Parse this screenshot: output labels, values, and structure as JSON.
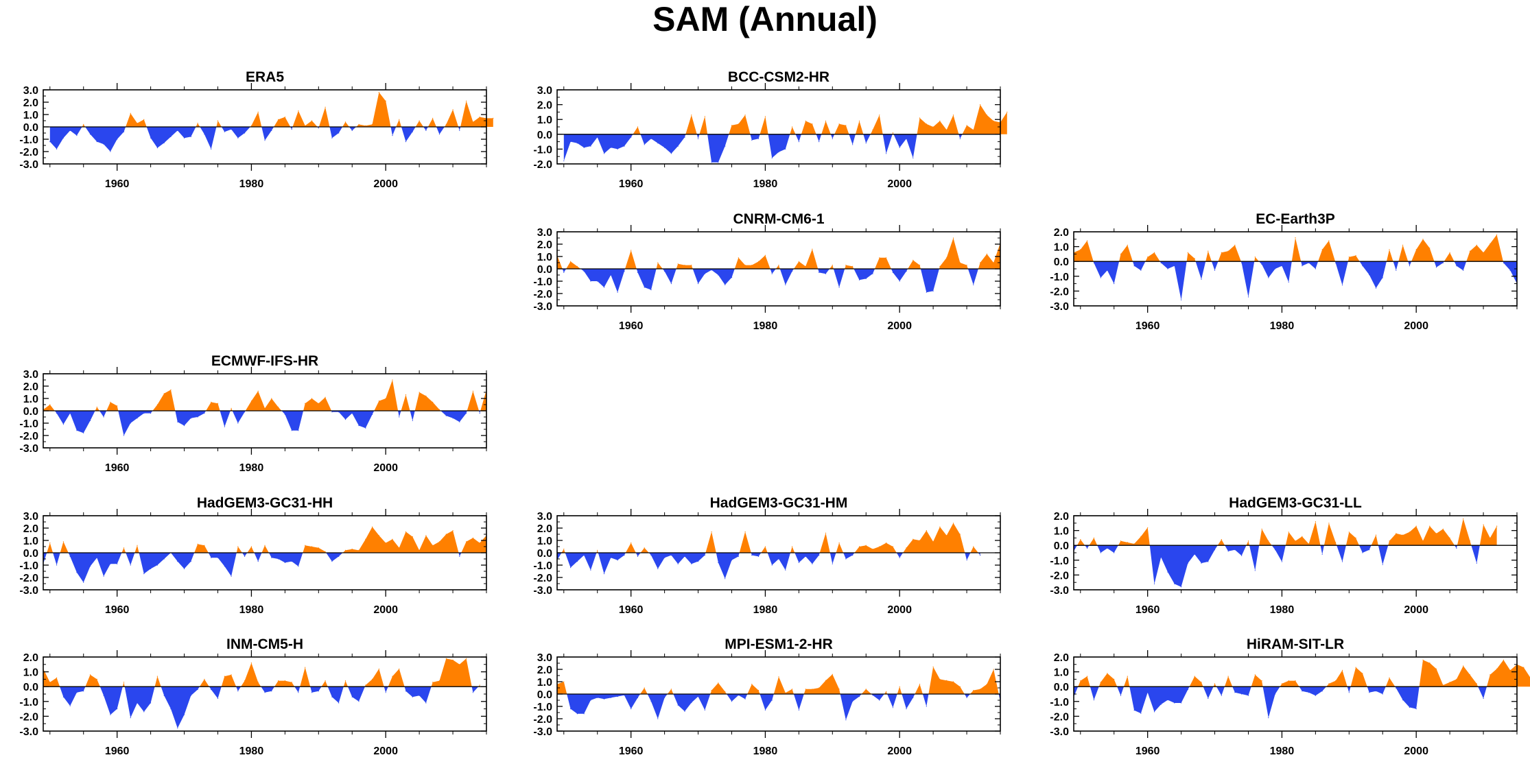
{
  "figure_title": "SAM (Annual)",
  "colors": {
    "positive": "#ff8000",
    "negative": "#2a46ee",
    "axis": "#000000"
  },
  "chart_data": [
    {
      "type": "area",
      "title": "ERA5",
      "row": 0,
      "col": 0,
      "ylim": [
        -3,
        3
      ],
      "yticks": [
        "3.0",
        "2.0",
        "1.0",
        "0.0",
        "-1.0",
        "-2.0",
        "-3.0"
      ],
      "xlim": [
        1949,
        2015
      ],
      "xticks": [
        "1960",
        "1980",
        "2000"
      ],
      "x_start": 1950,
      "values": [
        -1.2,
        -1.8,
        -0.9,
        -0.3,
        -0.7,
        0.2,
        -0.6,
        -1.2,
        -1.4,
        -2.0,
        -1.0,
        -0.4,
        1.1,
        0.3,
        0.6,
        -0.9,
        -1.7,
        -1.3,
        -0.8,
        -0.3,
        -0.9,
        -0.8,
        0.3,
        -0.6,
        -1.8,
        0.5,
        -0.4,
        -0.2,
        -0.9,
        -0.5,
        0.1,
        1.2,
        -1.1,
        -0.3,
        0.6,
        0.8,
        -0.2,
        1.3,
        0.1,
        0.5,
        -0.1,
        1.6,
        -0.9,
        -0.5,
        0.4,
        -0.3,
        0.2,
        0.1,
        0.2,
        2.8,
        2.1,
        -0.7,
        0.6,
        -1.2,
        -0.4,
        0.5,
        -0.3,
        0.7,
        -0.6,
        0.2,
        1.4,
        -0.3,
        2.1,
        0.4,
        0.8,
        0.7,
        0.7
      ]
    },
    {
      "type": "area",
      "title": "BCC-CSM2-HR",
      "row": 0,
      "col": 1,
      "ylim": [
        -2,
        3
      ],
      "yticks": [
        "3.0",
        "2.0",
        "1.0",
        "0.0",
        "-1.0",
        "-2.0"
      ],
      "xlim": [
        1949,
        2015
      ],
      "xticks": [
        "1960",
        "1980",
        "2000"
      ],
      "x_start": 1950,
      "values": [
        -1.8,
        -0.5,
        -0.6,
        -0.9,
        -0.8,
        -0.2,
        -1.3,
        -0.9,
        -1.0,
        -0.8,
        -0.2,
        0.5,
        -0.7,
        -0.3,
        -0.6,
        -0.9,
        -1.3,
        -0.8,
        -0.2,
        1.3,
        -0.3,
        1.2,
        -1.9,
        -1.9,
        -0.8,
        0.6,
        0.7,
        1.3,
        -0.4,
        -0.3,
        1.2,
        -1.6,
        -1.2,
        -1.0,
        0.5,
        -0.5,
        0.9,
        0.7,
        -0.5,
        0.9,
        -0.3,
        0.7,
        0.6,
        -0.7,
        0.9,
        -0.6,
        0.3,
        1.3,
        -1.3,
        0.1,
        -0.9,
        -0.3,
        -1.6,
        1.1,
        0.7,
        0.5,
        0.9,
        0.3,
        1.3,
        -0.3,
        0.6,
        0.3,
        2.0,
        1.3,
        0.9,
        0.8,
        1.5
      ]
    },
    {
      "type": "area",
      "title": "CNRM-CM6-1",
      "row": 1,
      "col": 1,
      "ylim": [
        -3,
        3
      ],
      "yticks": [
        "3.0",
        "2.0",
        "1.0",
        "0.0",
        "-1.0",
        "-2.0",
        "-3.0"
      ],
      "xlim": [
        1949,
        2015
      ],
      "xticks": [
        "1960",
        "1980",
        "2000"
      ],
      "x_start": 1949,
      "values": [
        1.1,
        -0.3,
        0.6,
        0.2,
        -0.2,
        -1.0,
        -1.0,
        -1.5,
        -0.5,
        -1.9,
        -0.2,
        1.5,
        -0.3,
        -1.5,
        -1.7,
        0.5,
        -0.2,
        -1.2,
        0.4,
        0.3,
        0.3,
        -1.2,
        -0.4,
        -0.1,
        -0.5,
        -1.3,
        -0.7,
        0.9,
        0.3,
        0.3,
        0.6,
        1.1,
        -0.4,
        0.3,
        -1.3,
        -0.2,
        0.6,
        0.2,
        1.6,
        -0.3,
        -0.4,
        0.3,
        -1.5,
        0.3,
        0.2,
        -0.9,
        -0.8,
        -0.4,
        0.9,
        0.9,
        -0.3,
        -1.0,
        -0.2,
        0.7,
        0.3,
        -1.9,
        -1.8,
        0.2,
        0.9,
        2.5,
        0.5,
        0.3,
        -1.3,
        0.5,
        1.2,
        0.5,
        2.1
      ]
    },
    {
      "type": "area",
      "title": "EC-Earth3P",
      "row": 1,
      "col": 2,
      "ylim": [
        -3,
        2
      ],
      "yticks": [
        "2.0",
        "1.0",
        "0.0",
        "-1.0",
        "-2.0",
        "-3.0"
      ],
      "xlim": [
        1949,
        2015
      ],
      "xticks": [
        "1960",
        "1980",
        "2000"
      ],
      "x_start": 1949,
      "values": [
        0.6,
        0.8,
        1.4,
        -0.1,
        -1.1,
        -0.6,
        -1.5,
        0.5,
        1.1,
        -0.3,
        -0.6,
        0.3,
        0.6,
        -0.1,
        -0.5,
        -0.3,
        -2.6,
        0.6,
        0.2,
        -1.2,
        0.7,
        -0.6,
        0.6,
        0.7,
        1.1,
        -0.1,
        -2.4,
        0.3,
        -0.2,
        -1.1,
        -0.5,
        -0.3,
        -1.4,
        1.6,
        -0.3,
        -0.1,
        -0.5,
        0.8,
        1.4,
        -0.1,
        -1.6,
        0.3,
        0.4,
        -0.3,
        -0.9,
        -1.8,
        -1.1,
        0.8,
        -0.6,
        1.1,
        -0.3,
        0.8,
        1.5,
        0.9,
        -0.4,
        -0.1,
        0.6,
        -0.3,
        -0.6,
        0.7,
        1.1,
        0.6,
        1.2,
        1.8,
        -0.1,
        -0.6,
        -1.5
      ]
    },
    {
      "type": "area",
      "title": "ECMWF-IFS-HR",
      "row": 2,
      "col": 0,
      "ylim": [
        -3,
        3
      ],
      "yticks": [
        "3.0",
        "2.0",
        "1.0",
        "0.0",
        "-1.0",
        "-2.0",
        "-3.0"
      ],
      "xlim": [
        1949,
        2015
      ],
      "xticks": [
        "1960",
        "1980",
        "2000"
      ],
      "x_start": 1949,
      "values": [
        0.1,
        0.5,
        -0.2,
        -1.1,
        -0.2,
        -1.6,
        -1.8,
        -0.8,
        0.3,
        -0.5,
        0.7,
        0.4,
        -2.0,
        -1.0,
        -0.6,
        -0.2,
        -0.2,
        0.5,
        1.4,
        1.7,
        -0.9,
        -1.2,
        -0.6,
        -0.5,
        -0.2,
        0.7,
        0.6,
        -1.3,
        0.2,
        -1.0,
        -0.1,
        0.8,
        1.6,
        0.2,
        1.0,
        0.3,
        -0.3,
        -1.6,
        -1.6,
        0.6,
        1.0,
        0.6,
        1.1,
        -0.1,
        -0.1,
        -0.7,
        -0.2,
        -1.2,
        -1.4,
        -0.3,
        0.8,
        1.0,
        2.5,
        -0.5,
        1.3,
        -0.8,
        1.5,
        1.2,
        0.7,
        0.1,
        -0.4,
        -0.6,
        -0.9,
        -0.2,
        1.6,
        -0.2,
        1.7
      ]
    },
    {
      "type": "area",
      "title": "HadGEM3-GC31-HH",
      "row": 3,
      "col": 0,
      "ylim": [
        -3,
        3
      ],
      "yticks": [
        "3.0",
        "2.0",
        "1.0",
        "0.0",
        "-1.0",
        "-2.0",
        "-3.0"
      ],
      "xlim": [
        1949,
        2015
      ],
      "xticks": [
        "1960",
        "1980",
        "2000"
      ],
      "x_start": 1949,
      "values": [
        -0.9,
        0.8,
        -1.0,
        0.9,
        -0.3,
        -1.6,
        -2.4,
        -1.1,
        -0.4,
        -1.9,
        -0.9,
        -0.9,
        0.4,
        -1.0,
        0.6,
        -1.7,
        -1.3,
        -1.0,
        -0.5,
        0.0,
        -0.7,
        -1.3,
        -0.7,
        0.7,
        0.6,
        -0.4,
        -0.4,
        -1.1,
        -1.9,
        0.5,
        -0.3,
        0.5,
        -0.7,
        0.6,
        -0.4,
        -0.5,
        -0.8,
        -0.7,
        -1.1,
        0.6,
        0.5,
        0.4,
        0.1,
        -0.7,
        -0.3,
        0.2,
        0.3,
        0.2,
        1.1,
        2.1,
        1.4,
        0.8,
        1.1,
        0.4,
        1.7,
        1.3,
        0.2,
        1.4,
        0.6,
        0.9,
        1.5,
        1.8,
        -0.3,
        0.9,
        1.2,
        0.8,
        1.4
      ]
    },
    {
      "type": "area",
      "title": "HadGEM3-GC31-HM",
      "row": 3,
      "col": 1,
      "ylim": [
        -3,
        3
      ],
      "yticks": [
        "3.0",
        "2.0",
        "1.0",
        "0.0",
        "-1.0",
        "-2.0",
        "-3.0"
      ],
      "xlim": [
        1949,
        2015
      ],
      "xticks": [
        "1960",
        "1980",
        "2000"
      ],
      "x_start": 1949,
      "values": [
        -0.6,
        0.3,
        -1.2,
        -0.7,
        -0.2,
        -1.4,
        0.2,
        -1.7,
        -0.4,
        -0.6,
        -0.2,
        0.8,
        -0.3,
        0.4,
        -0.2,
        -1.3,
        -0.4,
        -0.2,
        -0.9,
        -0.3,
        -0.9,
        -0.7,
        -0.2,
        1.7,
        -0.8,
        -2.1,
        -0.6,
        -0.3,
        1.7,
        -0.2,
        -0.3,
        0.5,
        -1.0,
        -0.5,
        -1.4,
        0.5,
        -0.8,
        -0.3,
        -0.9,
        -0.2,
        1.6,
        -0.9,
        0.8,
        -0.5,
        -0.2,
        0.5,
        0.6,
        0.3,
        0.5,
        0.8,
        0.5,
        -0.4,
        0.4,
        1.1,
        1.0,
        1.8,
        0.9,
        2.1,
        1.4,
        2.4,
        1.5,
        -0.6,
        0.5,
        -0.2
      ]
    },
    {
      "type": "area",
      "title": "HadGEM3-GC31-LL",
      "row": 3,
      "col": 2,
      "ylim": [
        -3,
        2
      ],
      "yticks": [
        "2.0",
        "1.0",
        "0.0",
        "-1.0",
        "-2.0",
        "-3.0"
      ],
      "xlim": [
        1949,
        2015
      ],
      "xticks": [
        "1960",
        "1980",
        "2000"
      ],
      "x_start": 1949,
      "values": [
        -0.4,
        0.4,
        -0.2,
        0.5,
        -0.5,
        -0.2,
        -0.5,
        0.3,
        0.2,
        0.1,
        0.6,
        1.2,
        -2.6,
        -0.8,
        -1.8,
        -2.6,
        -2.8,
        -1.2,
        -0.6,
        -1.2,
        -1.1,
        -0.3,
        0.4,
        -0.4,
        -0.3,
        -0.7,
        0.3,
        -1.7,
        1.1,
        0.3,
        -0.3,
        -1.1,
        0.9,
        0.3,
        0.6,
        0.1,
        1.6,
        -0.6,
        1.5,
        0.2,
        -1.1,
        0.9,
        0.5,
        -0.5,
        -0.3,
        0.7,
        -1.3,
        0.3,
        0.8,
        0.7,
        0.9,
        1.3,
        0.3,
        1.3,
        0.8,
        1.1,
        0.5,
        -0.2,
        1.8,
        0.3,
        -1.2,
        1.4,
        0.5,
        1.3
      ]
    },
    {
      "type": "area",
      "title": "INM-CM5-H",
      "row": 4,
      "col": 0,
      "ylim": [
        -3,
        2
      ],
      "yticks": [
        "2.0",
        "1.0",
        "0.0",
        "-1.0",
        "-2.0",
        "-3.0"
      ],
      "xlim": [
        1949,
        2015
      ],
      "xticks": [
        "1960",
        "1980",
        "2000"
      ],
      "x_start": 1949,
      "values": [
        1.2,
        0.3,
        0.6,
        -0.7,
        -1.3,
        -0.4,
        -0.3,
        0.8,
        0.5,
        -0.6,
        -1.9,
        -1.5,
        0.3,
        -2.1,
        -1.1,
        -1.7,
        -1.1,
        0.7,
        -0.6,
        -1.5,
        -2.8,
        -1.9,
        -0.6,
        -0.2,
        0.5,
        -0.2,
        -0.8,
        0.7,
        0.8,
        -0.3,
        0.4,
        1.6,
        0.3,
        -0.4,
        -0.3,
        0.4,
        0.4,
        0.3,
        -0.4,
        1.3,
        -0.4,
        -0.3,
        0.4,
        -0.7,
        -1.1,
        0.4,
        -0.7,
        -1.0,
        0.1,
        0.5,
        1.2,
        -0.4,
        0.7,
        1.2,
        -0.3,
        -0.7,
        -0.6,
        -1.1,
        0.3,
        0.4,
        1.9,
        1.8,
        1.5,
        1.9,
        -0.4,
        0.1
      ]
    },
    {
      "type": "area",
      "title": "MPI-ESM1-2-HR",
      "row": 4,
      "col": 1,
      "ylim": [
        -3,
        3
      ],
      "yticks": [
        "3.0",
        "2.0",
        "1.0",
        "0.0",
        "-1.0",
        "-2.0",
        "-3.0"
      ],
      "xlim": [
        1949,
        2015
      ],
      "xticks": [
        "1960",
        "1980",
        "2000"
      ],
      "x_start": 1949,
      "values": [
        0.8,
        1.0,
        -1.2,
        -1.6,
        -1.6,
        -0.5,
        -0.3,
        -0.4,
        -0.3,
        -0.2,
        -0.1,
        -1.2,
        -0.3,
        0.5,
        -0.6,
        -2.0,
        -0.3,
        0.4,
        -0.9,
        -1.4,
        -0.7,
        -0.2,
        -1.3,
        0.3,
        0.9,
        0.2,
        -0.6,
        -0.1,
        -0.4,
        0.8,
        0.3,
        -1.3,
        -0.5,
        1.4,
        0.1,
        0.4,
        -1.3,
        0.4,
        0.4,
        0.5,
        1.1,
        1.6,
        0.4,
        -2.1,
        -0.6,
        -0.2,
        0.4,
        -0.1,
        -0.5,
        0.2,
        -1.1,
        0.6,
        -1.2,
        -0.3,
        0.8,
        -1.0,
        2.2,
        1.2,
        1.1,
        1.0,
        0.6,
        -0.3,
        0.3,
        0.4,
        0.8,
        2.0,
        -0.6
      ]
    },
    {
      "type": "area",
      "title": "HiRAM-SIT-LR",
      "row": 4,
      "col": 2,
      "ylim": [
        -3,
        2
      ],
      "yticks": [
        "2.0",
        "1.0",
        "0.0",
        "-1.0",
        "-2.0",
        "-3.0"
      ],
      "xlim": [
        1949,
        2015
      ],
      "xticks": [
        "1960",
        "1980",
        "2000"
      ],
      "x_start": 1949,
      "values": [
        -0.7,
        0.4,
        0.7,
        -0.9,
        0.3,
        0.9,
        0.5,
        -0.6,
        0.7,
        -1.6,
        -1.8,
        -0.4,
        -1.7,
        -1.2,
        -0.9,
        -1.1,
        -1.1,
        -0.2,
        0.7,
        0.3,
        -0.8,
        0.2,
        -0.6,
        0.7,
        -0.4,
        -0.5,
        -0.6,
        0.8,
        0.4,
        -2.1,
        -0.5,
        0.2,
        0.4,
        0.4,
        -0.3,
        -0.4,
        -0.6,
        -0.3,
        0.2,
        0.4,
        1.1,
        -0.4,
        1.3,
        0.9,
        -0.4,
        -0.3,
        -0.5,
        0.6,
        -0.1,
        -0.9,
        -1.4,
        -1.5,
        1.8,
        1.6,
        1.2,
        0.1,
        0.3,
        0.5,
        1.4,
        0.8,
        0.2,
        -0.8,
        0.8,
        1.2,
        1.8,
        1.1,
        1.5,
        1.3,
        0.6
      ]
    }
  ]
}
